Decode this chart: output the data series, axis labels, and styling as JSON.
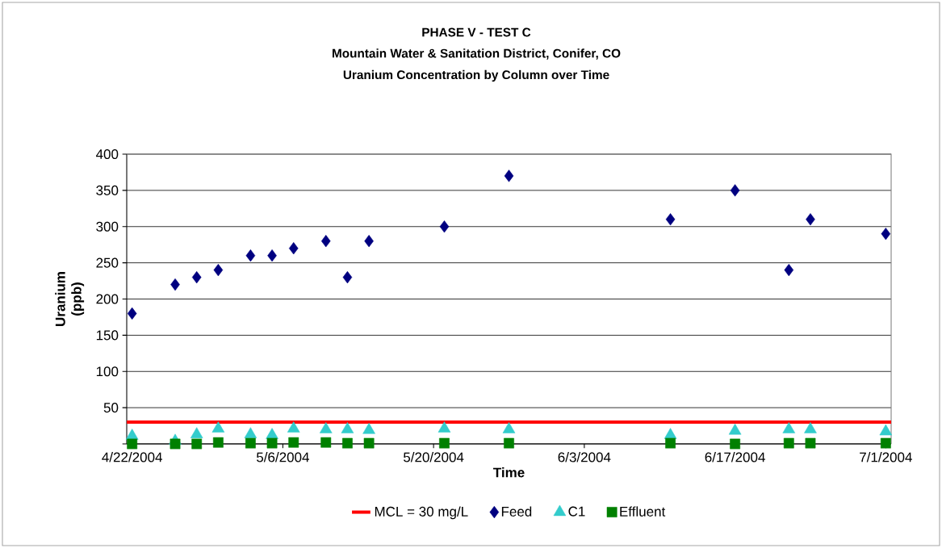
{
  "chart_data": {
    "type": "scatter",
    "title": "PHASE V - TEST C",
    "subtitle": "Mountain Water & Sanitation District, Conifer, CO",
    "annotations": [
      "Uranium Concentration by Column over Time"
    ],
    "xlabel": "Time",
    "ylabel": "Uranium (ppb)",
    "x": [
      "2004-04-22",
      "2004-04-26",
      "2004-04-28",
      "2004-04-30",
      "2004-05-03",
      "2004-05-05",
      "2004-05-07",
      "2004-05-10",
      "2004-05-12",
      "2004-05-14",
      "2004-05-21",
      "2004-05-27",
      "2004-06-11",
      "2004-06-17",
      "2004-06-22",
      "2004-06-24",
      "2004-07-01"
    ],
    "series": [
      {
        "name": "Feed",
        "color": "#000080",
        "marker": "diamond",
        "values": [
          180,
          220,
          230,
          240,
          260,
          260,
          270,
          280,
          230,
          280,
          300,
          370,
          310,
          350,
          240,
          310,
          290
        ]
      },
      {
        "name": "C1",
        "color": "#33cccc",
        "marker": "triangle",
        "values": [
          11,
          4,
          13,
          21,
          13,
          12,
          21,
          20,
          20,
          19,
          21,
          20,
          12,
          18,
          20,
          20,
          17
        ]
      },
      {
        "name": "Effluent",
        "color": "#008000",
        "marker": "square",
        "values": [
          0,
          0,
          0,
          2,
          1,
          1,
          2,
          2,
          1,
          1,
          1,
          1,
          1,
          0,
          1,
          1,
          1
        ]
      }
    ],
    "xlim": [
      "2004-04-21T12:00",
      "2004-07-01T12:00"
    ],
    "xticks": [
      {
        "value": "2004-04-22",
        "label": "4/22/2004"
      },
      {
        "value": "2004-05-06",
        "label": "5/6/2004"
      },
      {
        "value": "2004-05-20",
        "label": "5/20/2004"
      },
      {
        "value": "2004-06-03",
        "label": "6/3/2004"
      },
      {
        "value": "2004-06-17",
        "label": "6/17/2004"
      },
      {
        "value": "2004-07-01",
        "label": "7/1/2004"
      }
    ],
    "ylim": [
      0,
      400
    ],
    "yticks": [
      {
        "value": 0,
        "label": null
      },
      50,
      100,
      150,
      200,
      250,
      300,
      350,
      400
    ],
    "ref_lines": [
      {
        "axis": "y",
        "value": 30,
        "label": "MCL = 30 mg/L",
        "color": "#ff0000"
      }
    ],
    "grid": "y",
    "legend": "bottom"
  }
}
